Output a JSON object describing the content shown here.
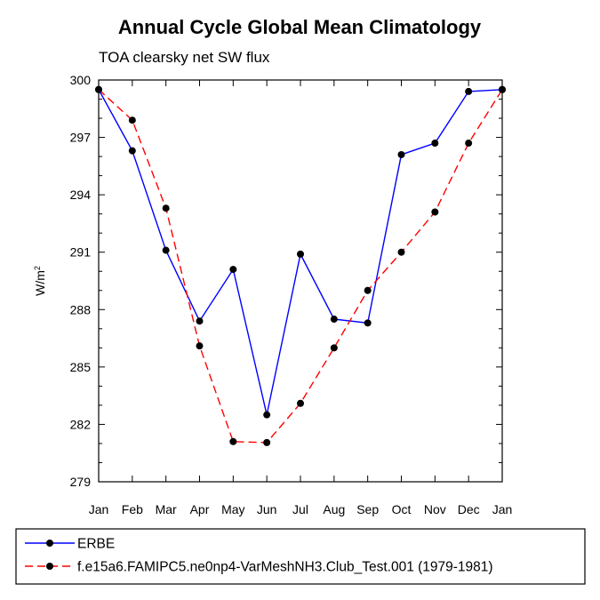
{
  "chart_data": {
    "type": "line",
    "title": "Annual Cycle Global Mean Climatology",
    "subtitle": "TOA clearsky net SW flux",
    "ylabel": "W/m",
    "ylabel_superscript": "2",
    "xlabel": "",
    "ylim": [
      279,
      300
    ],
    "yticks": [
      279,
      282,
      285,
      288,
      291,
      294,
      297,
      300
    ],
    "categories": [
      "Jan",
      "Feb",
      "Mar",
      "Apr",
      "May",
      "Jun",
      "Jul",
      "Aug",
      "Sep",
      "Oct",
      "Nov",
      "Dec",
      "Jan"
    ],
    "series": [
      {
        "name": "ERBE",
        "color": "#0000ff",
        "dash": "solid",
        "values": [
          299.5,
          296.3,
          291.1,
          287.4,
          290.1,
          282.5,
          290.9,
          287.5,
          287.3,
          296.1,
          296.7,
          299.4,
          299.5
        ]
      },
      {
        "name": "f.e15a6.FAMIPC5.ne0np4-VarMeshNH3.Club_Test.001 (1979-1981)",
        "color": "#ff0000",
        "dash": "dashed",
        "values": [
          299.5,
          297.9,
          293.3,
          286.1,
          281.1,
          281.05,
          283.1,
          286.0,
          289.0,
          291.0,
          293.1,
          296.7,
          299.5
        ]
      }
    ],
    "legend_position": "bottom"
  }
}
